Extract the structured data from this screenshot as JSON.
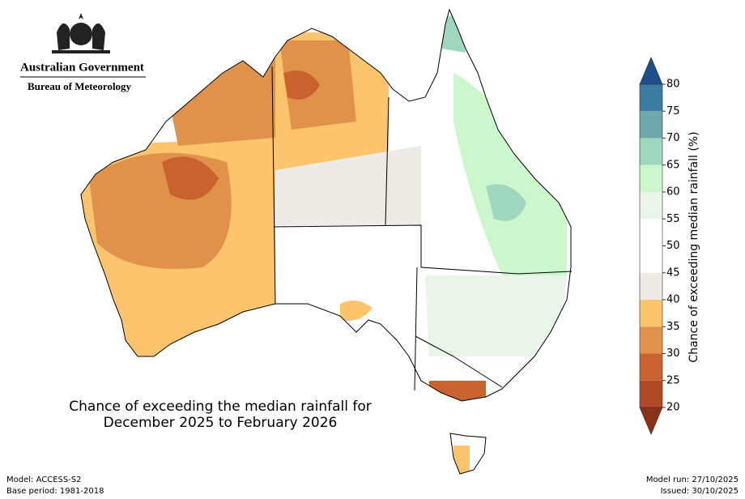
{
  "header": {
    "org": "Australian Government",
    "agency": "Bureau of Meteorology"
  },
  "map": {
    "title_lines": [
      "Chance of exceeding the median rainfall for",
      "December 2025 to February 2026"
    ]
  },
  "colorbar": {
    "label": "Chance of exceeding median rainfall (%)",
    "ticks": [
      20,
      25,
      30,
      35,
      40,
      45,
      50,
      55,
      60,
      65,
      70,
      75,
      80
    ],
    "colors": [
      "#8b331a",
      "#b04a27",
      "#c9622e",
      "#e0914a",
      "#fcc46c",
      "#eeeae4",
      "#ffffff",
      "#ffffff",
      "#e8f5e8",
      "#ccf7cc",
      "#9fd6be",
      "#6fa8aa",
      "#3b7ca3",
      "#1e4f8a"
    ]
  },
  "footer": {
    "model": "Model: ACCESS-S2",
    "base_period": "Base period: 1981-2018",
    "model_run": "Model run: 27/10/2025",
    "issued": "Issued: 30/10/2025"
  }
}
